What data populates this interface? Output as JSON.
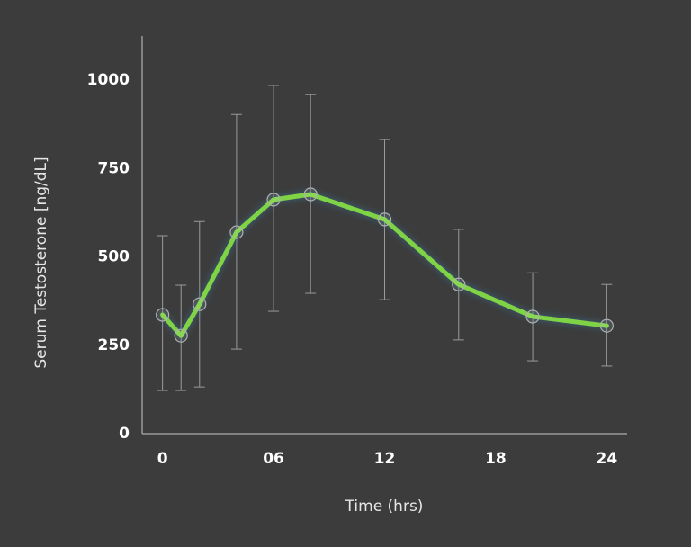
{
  "chart_data": {
    "type": "line",
    "xlabel": "Time (hrs)",
    "ylabel": "Serum Testosterone [ng/dL]",
    "x": [
      0,
      1,
      2,
      4,
      6,
      8,
      12,
      16,
      20,
      24
    ],
    "series": [
      {
        "name": "Serum Testosterone",
        "color": "#7fd444",
        "values": [
          336,
          277,
          366,
          570,
          662,
          677,
          606,
          422,
          331,
          305
        ],
        "upper": [
          560,
          420,
          600,
          903,
          985,
          959,
          832,
          578,
          455,
          422
        ],
        "lower": [
          122,
          122,
          132,
          239,
          346,
          397,
          379,
          265,
          206,
          191
        ]
      }
    ],
    "xlim": [
      -1.1,
      25.1
    ],
    "xticks": [
      0,
      {
        "value": 6,
        "label": "06"
      },
      12,
      18,
      24
    ],
    "ylim": [
      0,
      1125
    ],
    "yticks": [
      0,
      250,
      500,
      750,
      1000
    ],
    "grid": false
  }
}
